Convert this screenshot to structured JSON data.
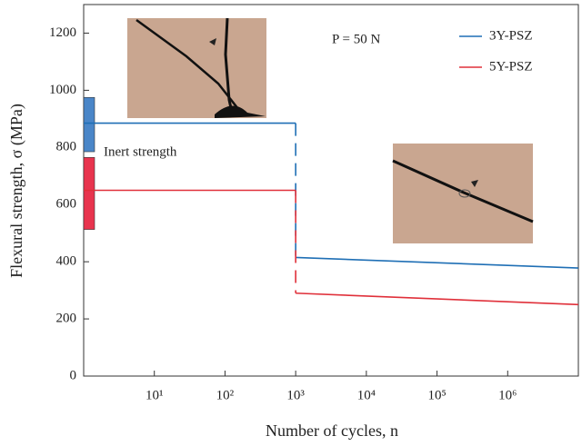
{
  "chart_data": {
    "type": "line",
    "xlabel": "Number of cycles, n",
    "ylabel": "Flexural strength, σ (MPa)",
    "annotations": [
      "P = 50 N",
      "Inert strength"
    ],
    "xscale": "log",
    "xlim": [
      1,
      10000000
    ],
    "ylim": [
      0,
      1300
    ],
    "xticks": [
      {
        "value": 10,
        "label": "10¹"
      },
      {
        "value": 100,
        "label": "10²"
      },
      {
        "value": 1000,
        "label": "10³"
      },
      {
        "value": 10000,
        "label": "10⁴"
      },
      {
        "value": 100000,
        "label": "10⁵"
      },
      {
        "value": 1000000,
        "label": "10⁶"
      }
    ],
    "yticks": [
      0,
      200,
      400,
      600,
      800,
      1000,
      1200
    ],
    "legend": "upper right",
    "series": [
      {
        "name": "3Y-PSZ",
        "color": "#1f6fb5",
        "x": [
          1,
          1000,
          1000,
          10000000
        ],
        "values": [
          885,
          885,
          415,
          378
        ],
        "inert_range": [
          785,
          975
        ],
        "inert_color": "#4a86c8"
      },
      {
        "name": "5Y-PSZ",
        "color": "#e0303a",
        "x": [
          1,
          1000,
          1000,
          10000000
        ],
        "values": [
          650,
          650,
          290,
          250
        ],
        "inert_range": [
          513,
          765
        ],
        "inert_color": "#e8344e"
      }
    ]
  }
}
